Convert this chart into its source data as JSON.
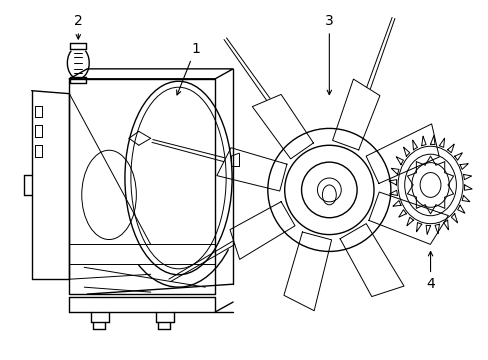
{
  "bg_color": "#ffffff",
  "line_color": "#000000",
  "lw": 1.0,
  "tlw": 0.7,
  "label_fontsize": 10
}
